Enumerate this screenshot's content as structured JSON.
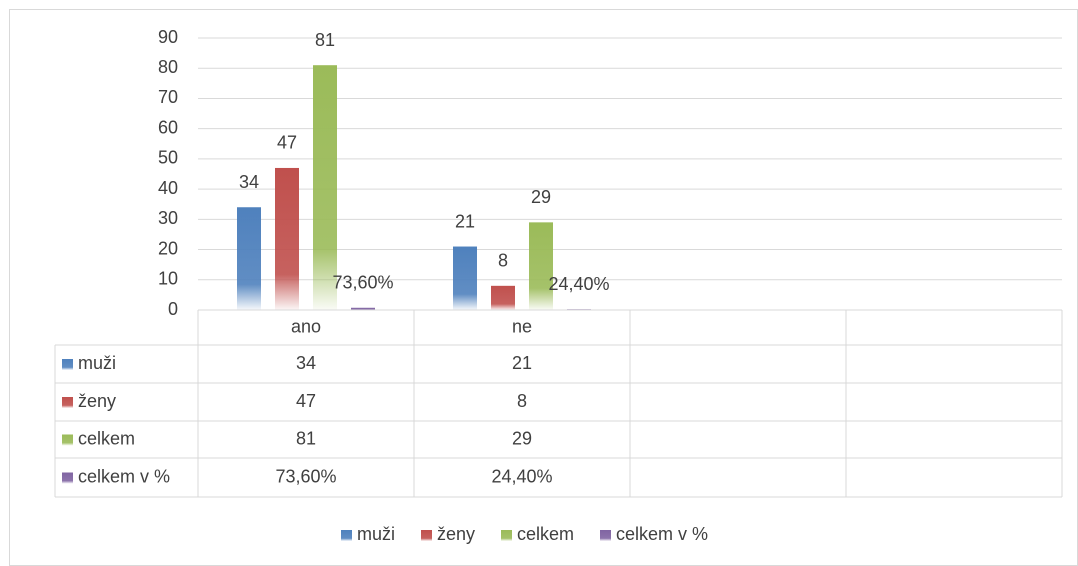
{
  "chart_data": {
    "type": "bar",
    "categories": [
      "ano",
      "ne",
      null,
      null
    ],
    "series": [
      {
        "name": "muži",
        "color": "#4f81bd",
        "values": [
          34,
          21,
          null,
          null
        ]
      },
      {
        "name": "ženy",
        "color": "#c0504d",
        "values": [
          47,
          8,
          null,
          null
        ]
      },
      {
        "name": "celkem",
        "color": "#9bbb59",
        "values": [
          81,
          29,
          null,
          null
        ]
      },
      {
        "name": "celkem v %",
        "color": "#8064a2",
        "values": [
          0.736,
          0.244,
          null,
          null
        ],
        "value_labels": [
          "73,60%",
          "24,40%",
          null,
          null
        ]
      }
    ],
    "ylim": [
      0,
      90
    ],
    "yticks": [
      0,
      10,
      20,
      30,
      40,
      50,
      60,
      70,
      80,
      90
    ],
    "grid": true,
    "legend": "bottom",
    "data_table": true
  }
}
